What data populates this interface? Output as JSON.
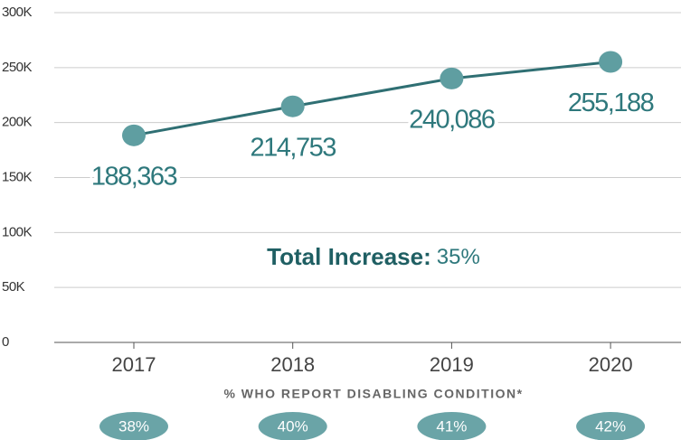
{
  "chart_data": {
    "type": "line",
    "categories": [
      "2017",
      "2018",
      "2019",
      "2020"
    ],
    "series": [
      {
        "name": "Total",
        "color": "#2f6f73",
        "marker_color": "#5f9ea1",
        "values": [
          188363,
          214753,
          240086,
          255188
        ],
        "value_labels": [
          "188,363",
          "214,753",
          "240,086",
          "255,188"
        ]
      }
    ],
    "ylim": [
      0,
      300000
    ],
    "yticks": [
      0,
      {
        "value": 50000,
        "label": "50K"
      },
      {
        "value": 100000,
        "label": "100K"
      },
      {
        "value": 150000,
        "label": "150K"
      },
      {
        "value": 200000,
        "label": "200K"
      },
      {
        "value": 250000,
        "label": "250K"
      },
      {
        "value": 300000,
        "label": "300K"
      }
    ],
    "grid": true,
    "annotation": {
      "label": "Total Increase:",
      "text": "35%"
    },
    "disabling_condition": {
      "label": "% WHO REPORT DISABLING CONDITION*",
      "color": "#6aa4a7",
      "values": [
        38,
        40,
        41,
        42
      ],
      "value_labels": [
        "38%",
        "40%",
        "41%",
        "42%"
      ]
    }
  }
}
